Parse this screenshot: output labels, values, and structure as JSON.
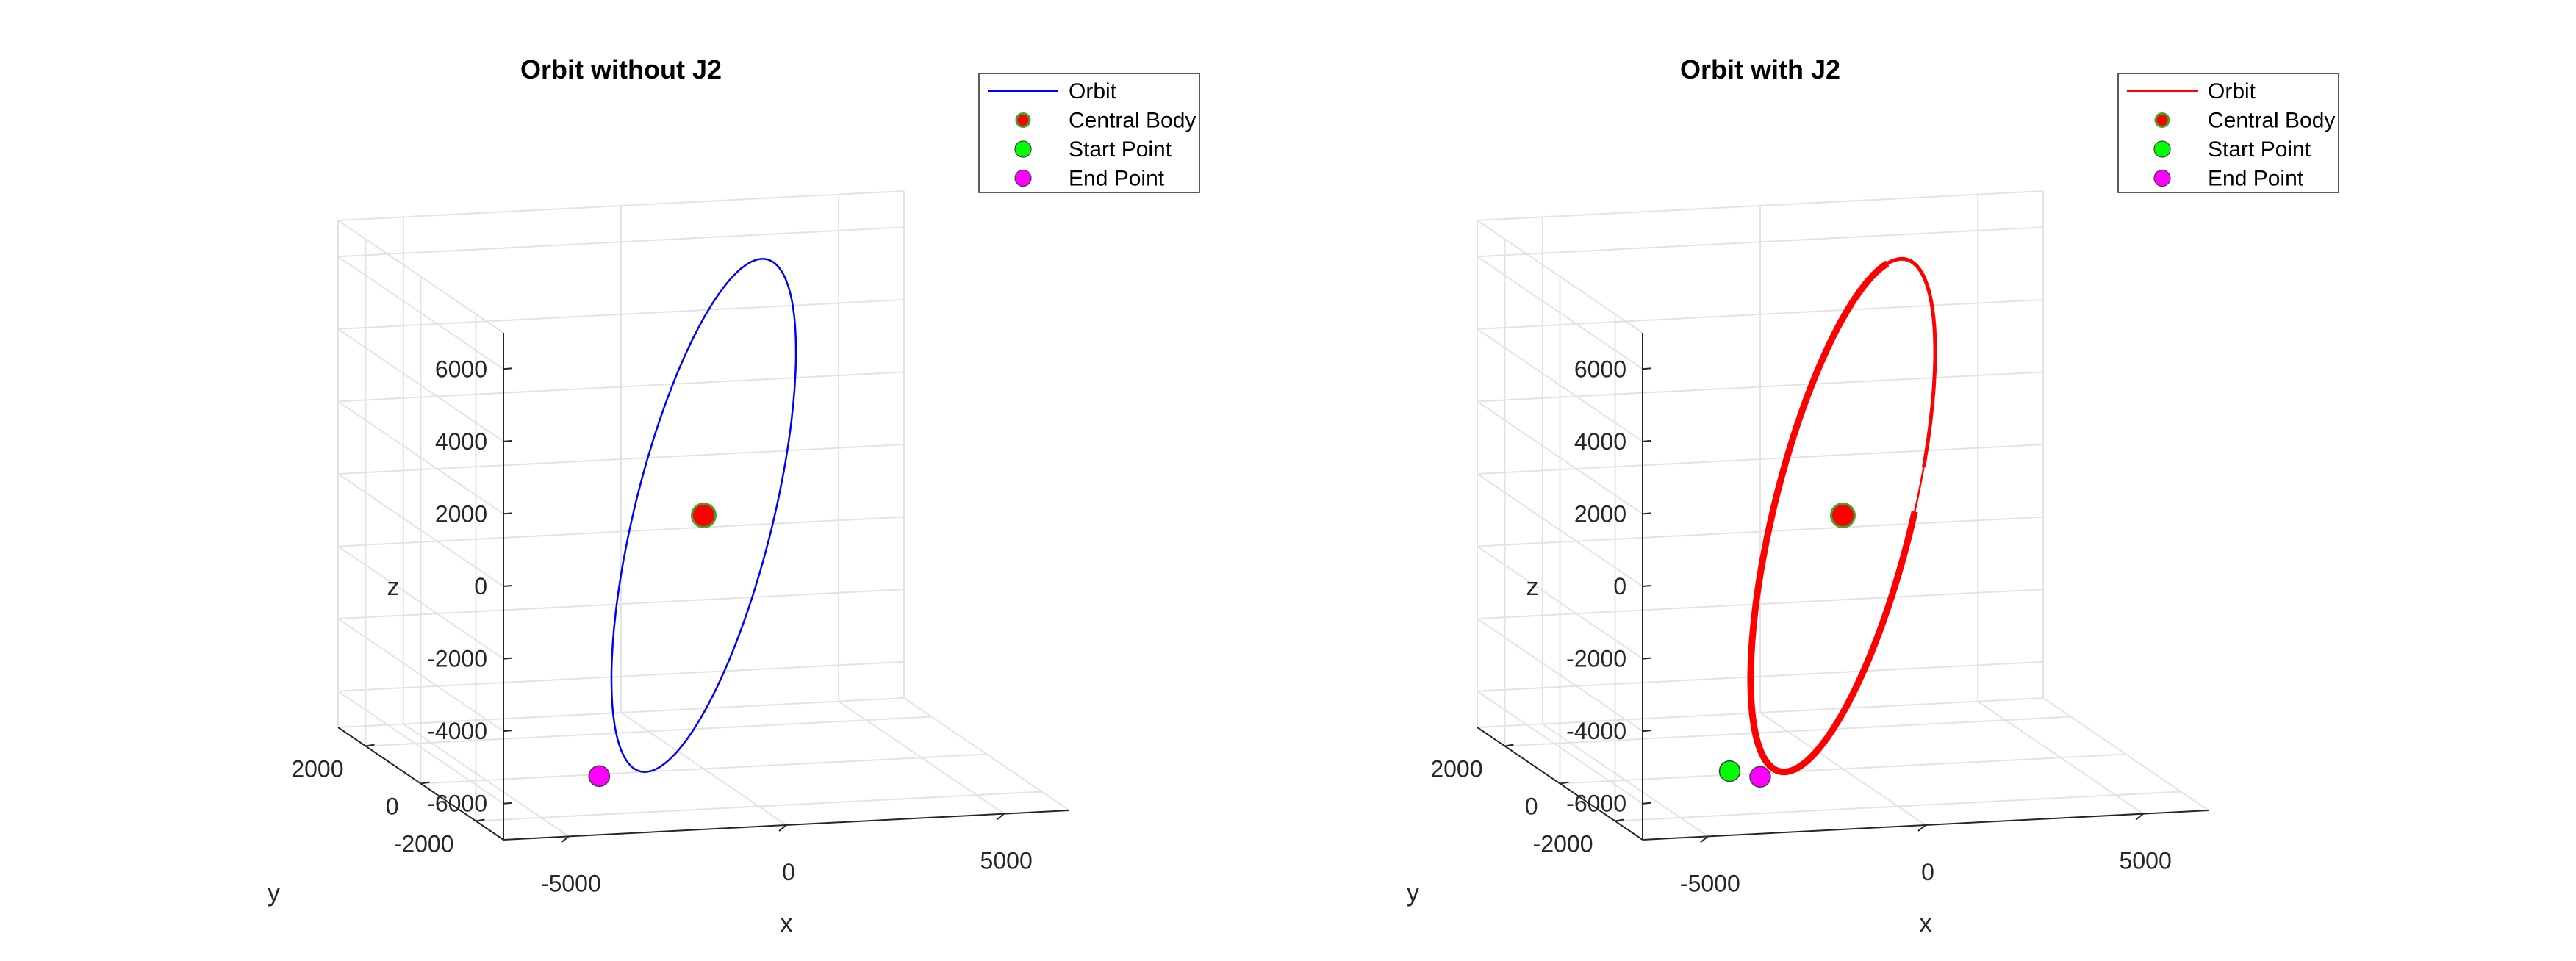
{
  "chart_data": [
    {
      "type": "line",
      "title": "Orbit without J2",
      "xlabel": "x",
      "ylabel": "y",
      "zlabel": "z",
      "xticks": [
        "-5000",
        "0",
        "5000"
      ],
      "yticks": [
        "-2000",
        "0",
        "2000"
      ],
      "zticks": [
        "-6000",
        "-4000",
        "-2000",
        "0",
        "2000",
        "4000",
        "6000"
      ],
      "xlim": [
        -6500,
        6500
      ],
      "ylim": [
        -3000,
        3000
      ],
      "zlim": [
        -7000,
        7000
      ],
      "grid": true,
      "legend_placement": "outside-top-right",
      "orbit_color": "#0000ff",
      "orbit_thick_revolutions": 0,
      "series": [
        {
          "name": "Orbit",
          "marker": "line",
          "color": "#0000ff"
        },
        {
          "name": "Central Body",
          "marker": "circle",
          "color": "#ff0000",
          "edge": "#3fa52f",
          "x": 0,
          "y": 0,
          "z": 0,
          "size": "large"
        },
        {
          "name": "Start Point",
          "marker": "circle",
          "color": "#00ff00",
          "x": -2400,
          "y": 0,
          "z": -7050
        },
        {
          "name": "End Point",
          "marker": "circle",
          "color": "#ff00ff",
          "x": -2400,
          "y": 0,
          "z": -7050
        }
      ]
    },
    {
      "type": "line",
      "title": "Orbit with J2",
      "xlabel": "x",
      "ylabel": "y",
      "zlabel": "z",
      "xticks": [
        "-5000",
        "0",
        "5000"
      ],
      "yticks": [
        "-2000",
        "0",
        "2000"
      ],
      "zticks": [
        "-6000",
        "-4000",
        "-2000",
        "0",
        "2000",
        "4000",
        "6000"
      ],
      "xlim": [
        -6500,
        6500
      ],
      "ylim": [
        -3000,
        3000
      ],
      "zlim": [
        -7000,
        7000
      ],
      "grid": true,
      "legend_placement": "outside-top-right",
      "orbit_color": "#ff0000",
      "orbit_thick_revolutions": 1,
      "series": [
        {
          "name": "Orbit",
          "marker": "line",
          "color": "#ff0000"
        },
        {
          "name": "Central Body",
          "marker": "circle",
          "color": "#ff0000",
          "edge": "#3fa52f",
          "x": 0,
          "y": 0,
          "z": 0,
          "size": "large"
        },
        {
          "name": "Start Point",
          "marker": "circle",
          "color": "#00ff00",
          "x": -2600,
          "y": 0,
          "z": -6900
        },
        {
          "name": "End Point",
          "marker": "circle",
          "color": "#ff00ff",
          "x": -1900,
          "y": 0,
          "z": -7100
        }
      ]
    }
  ]
}
